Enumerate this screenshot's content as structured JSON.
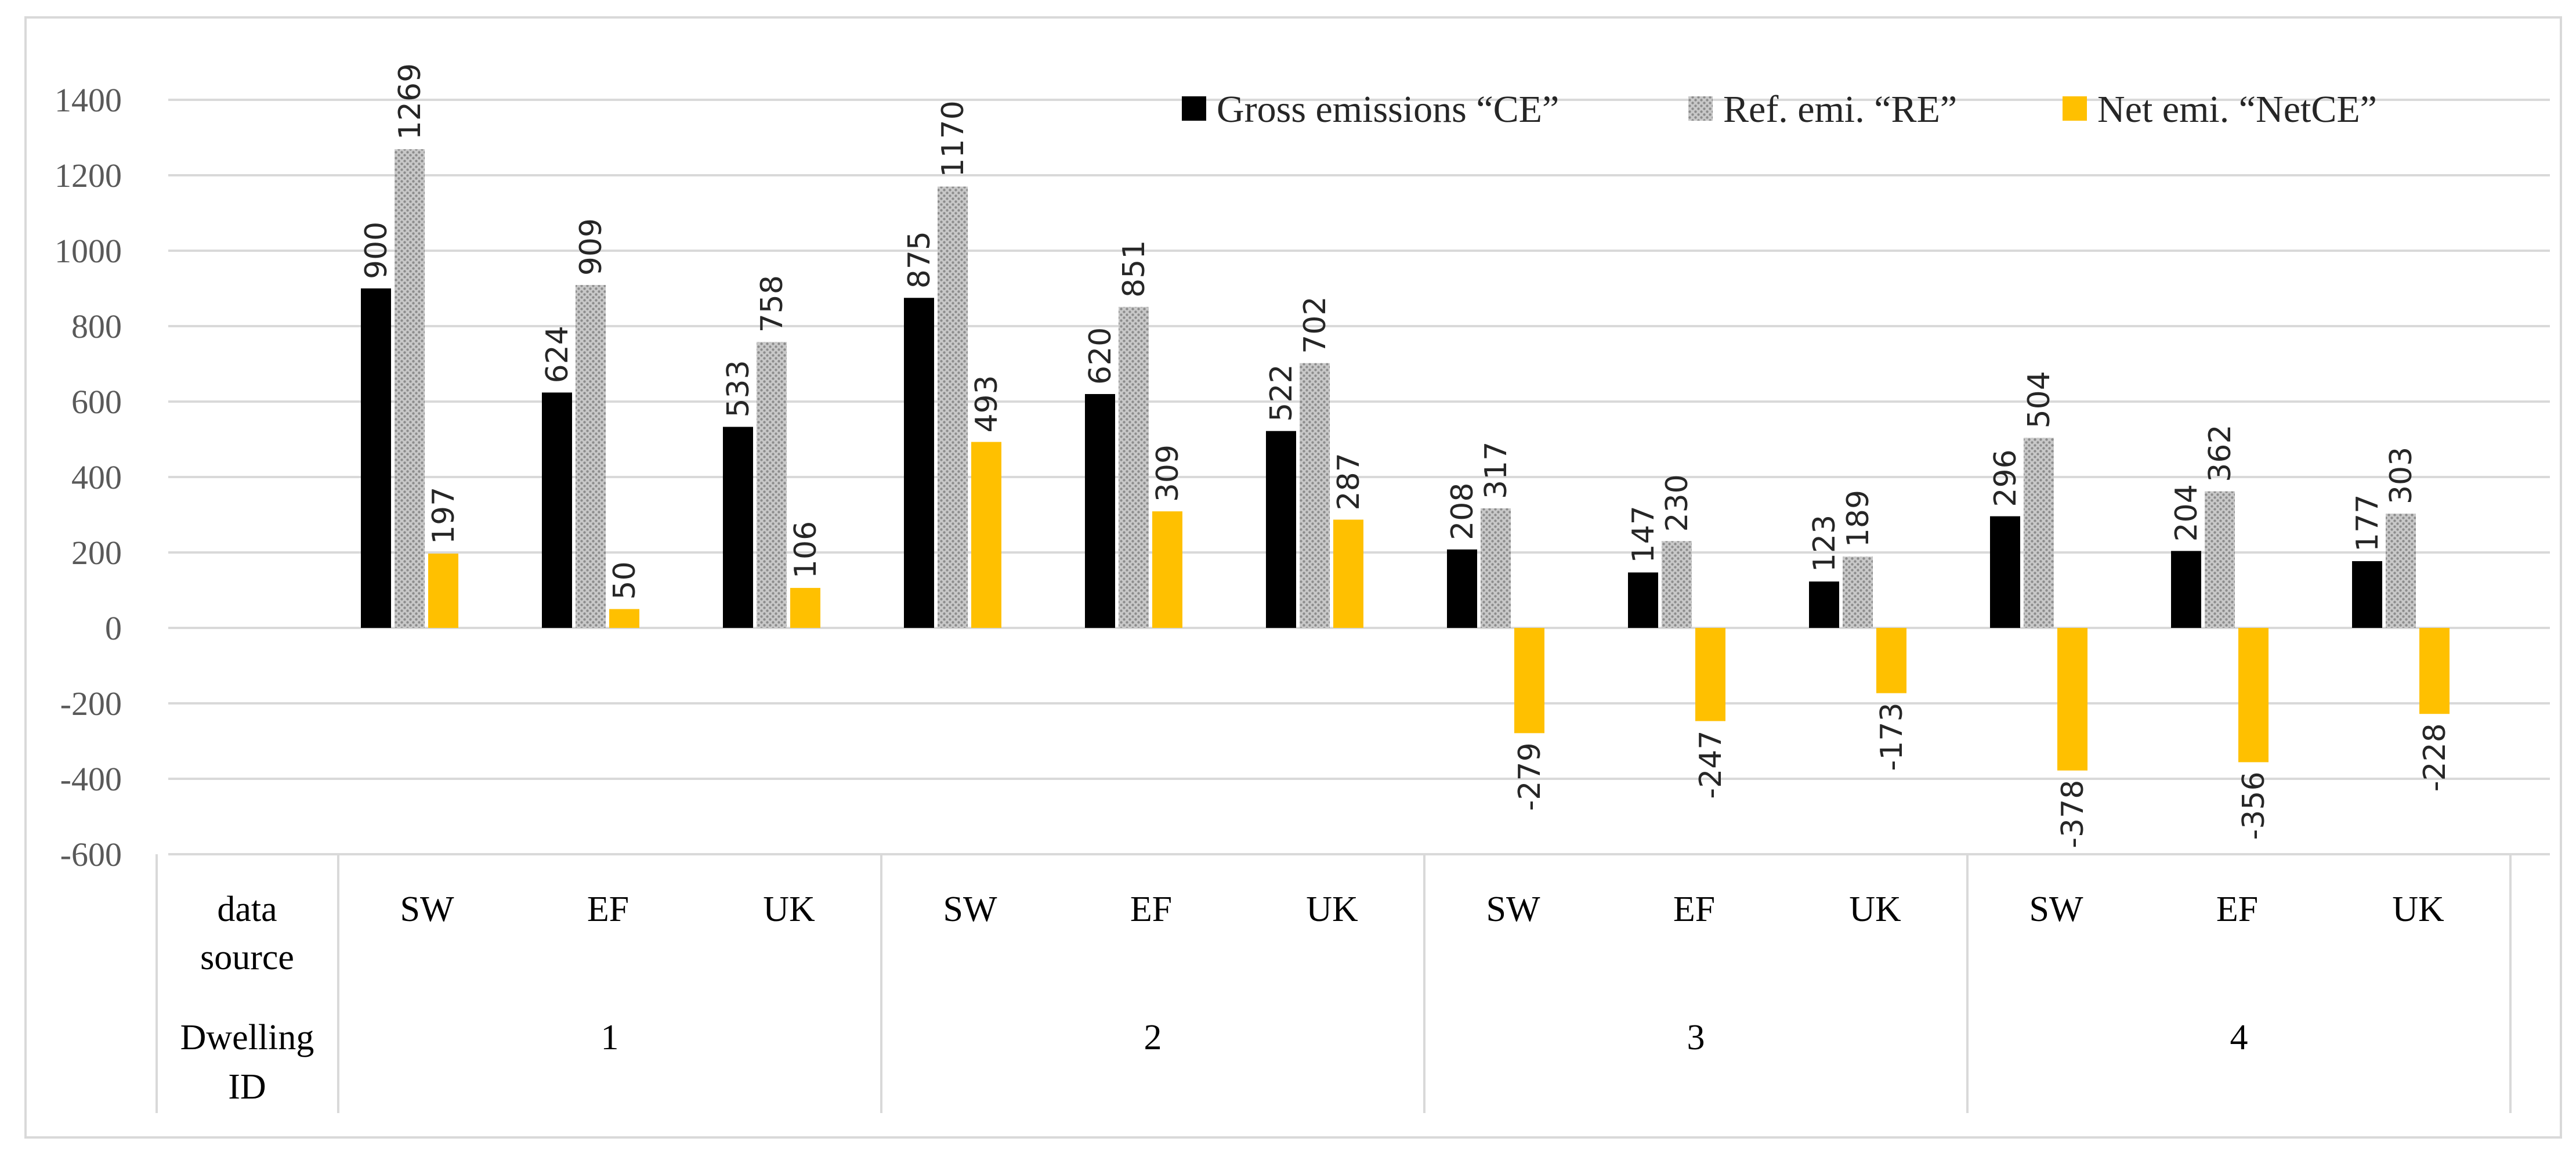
{
  "colors": {
    "gross": "#000000",
    "ref_fill": "#c8c8c8",
    "ref_dot": "#8c8c8c",
    "net": "#ffc000",
    "grid": "#d9d9d9",
    "border": "#d9d9d9"
  },
  "chart_data": {
    "type": "bar",
    "title": "",
    "xlabel": "",
    "ylabel": "",
    "ylim": [
      -600,
      1400
    ],
    "y_ticks": [
      1400,
      1200,
      1000,
      800,
      600,
      400,
      200,
      0,
      -200,
      -400,
      -600
    ],
    "grid": true,
    "legend_position": "top-right",
    "categories": [
      "SW",
      "EF",
      "UK",
      "SW",
      "EF",
      "UK",
      "SW",
      "EF",
      "UK",
      "SW",
      "EF",
      "UK"
    ],
    "row_headers": [
      "data source",
      "Dwelling ID"
    ],
    "groups": [
      "1",
      "2",
      "3",
      "4"
    ],
    "series": [
      {
        "name": "Gross emissions “CE”",
        "key": "gross",
        "values": [
          900,
          624,
          533,
          875,
          620,
          522,
          208,
          147,
          123,
          296,
          204,
          177
        ]
      },
      {
        "name": "Ref. emi. “RE”",
        "key": "ref",
        "values": [
          1269,
          909,
          758,
          1170,
          851,
          702,
          317,
          230,
          189,
          504,
          362,
          303
        ]
      },
      {
        "name": "Net emi. “NetCE”",
        "key": "net",
        "values": [
          197,
          50,
          106,
          493,
          309,
          287,
          -279,
          -247,
          -173,
          -378,
          -356,
          -228
        ]
      }
    ]
  }
}
